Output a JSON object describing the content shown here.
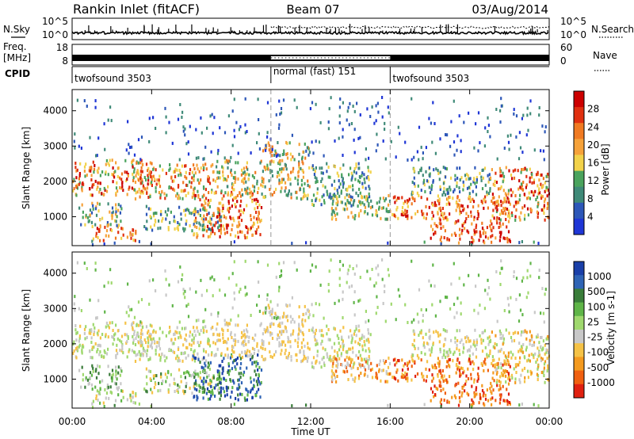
{
  "header": {
    "title": "Rankin Inlet (fitACF)",
    "beam": "Beam 07",
    "date": "03/Aug/2014"
  },
  "status_panels": {
    "nsky_label": "N.Sky",
    "nsearch_label": "N.Search",
    "count_ticks": [
      "10^5",
      "10^0"
    ],
    "freq_label_line1": "Freq.",
    "freq_label_line2": "[MHz]",
    "freq_ticks": [
      "18",
      "8"
    ],
    "nave_label": "Nave",
    "nave_ticks": [
      "60",
      "0"
    ],
    "cpid_label": "CPID",
    "cpid_segments": [
      {
        "label": "twofsound 3503",
        "start_hour": 0,
        "end_hour": 10
      },
      {
        "label": "normal (fast) 151",
        "start_hour": 10,
        "end_hour": 16
      },
      {
        "label": "twofsound 3503",
        "start_hour": 16,
        "end_hour": 24
      }
    ],
    "colors": {
      "nsky": "#000000",
      "nsearch": "#000000",
      "freq": "#000000"
    }
  },
  "chart_data": [
    {
      "type": "heatmap",
      "name": "Power",
      "ylabel": "Slant Range [km]",
      "xlim": [
        0,
        24
      ],
      "ylim": [
        180,
        4600
      ],
      "yticks": [
        "1000",
        "2000",
        "3000",
        "4000"
      ],
      "colorbar": {
        "label": "Power [dB]",
        "ticks": [
          "4",
          "8",
          "12",
          "16",
          "20",
          "24",
          "28"
        ],
        "colors": [
          "#1f36d6",
          "#2d57b8",
          "#3f8a78",
          "#4aa35d",
          "#f2d24a",
          "#f6a23a",
          "#f07a22",
          "#e03010",
          "#cc0000"
        ]
      },
      "grid": false
    },
    {
      "type": "heatmap",
      "name": "Velocity",
      "ylabel": "Slant Range [km]",
      "xlabel": "Time UT",
      "xlim": [
        0,
        24
      ],
      "ylim": [
        180,
        4600
      ],
      "yticks": [
        "1000",
        "2000",
        "3000",
        "4000"
      ],
      "xticks": [
        "00:00",
        "04:00",
        "08:00",
        "12:00",
        "16:00",
        "20:00",
        "00:00"
      ],
      "colorbar": {
        "label": "Velocity [m s-1]",
        "ticks": [
          "1000",
          "500",
          "100",
          "25",
          "-25",
          "-100",
          "-500",
          "-1000"
        ],
        "colors": [
          "#1a3fa8",
          "#2f64b5",
          "#3a7d3a",
          "#5fb548",
          "#9fd86e",
          "#c8c8c8",
          "#f5c246",
          "#f49a1f",
          "#f06010",
          "#e02010"
        ]
      },
      "grid": false
    }
  ]
}
